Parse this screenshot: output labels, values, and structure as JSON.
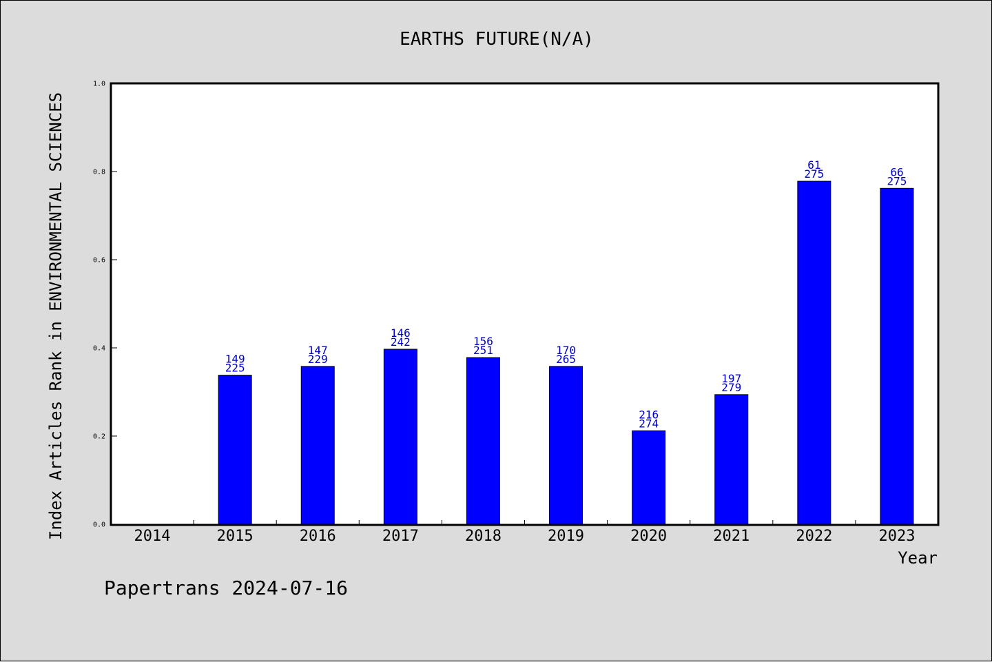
{
  "colors": {
    "background": "#dcdcdc",
    "plot_background": "#ffffff",
    "bar_fill": "#0000ff",
    "bar_label": "#0000cc",
    "axis": "#000000"
  },
  "chart_data": {
    "type": "bar",
    "title": "EARTHS FUTURE(N/A)",
    "xlabel": "Year",
    "ylabel": "Index Articles Rank in ENVIRONMENTAL SCIENCES",
    "ylim": [
      0,
      1.0
    ],
    "yticks": [
      "0.0",
      "0.2",
      "0.4",
      "0.6",
      "0.8",
      "1.0"
    ],
    "grid": false,
    "categories": [
      "2014",
      "2015",
      "2016",
      "2017",
      "2018",
      "2019",
      "2020",
      "2021",
      "2022",
      "2023"
    ],
    "values": [
      null,
      0.338,
      0.358,
      0.397,
      0.378,
      0.358,
      0.212,
      0.294,
      0.778,
      0.762
    ],
    "label_top": [
      "",
      "149",
      "147",
      "146",
      "156",
      "170",
      "216",
      "197",
      "61",
      "66"
    ],
    "label_bottom": [
      "",
      "225",
      "229",
      "242",
      "251",
      "265",
      "274",
      "279",
      "275",
      "275"
    ]
  },
  "footer": {
    "credit": "Papertrans 2024-07-16"
  }
}
